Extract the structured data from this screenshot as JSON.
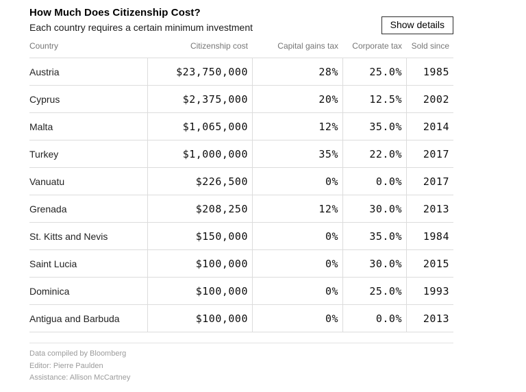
{
  "header": {
    "title": "How Much Does Citizenship Cost?",
    "subtitle": "Each country requires a certain minimum investment",
    "show_details_label": "Show details"
  },
  "chart_data": {
    "type": "table",
    "title": "How Much Does Citizenship Cost?",
    "subtitle": "Each country requires a certain minimum investment",
    "columns": [
      "Country",
      "Citizenship cost",
      "Capital gains tax",
      "Corporate tax",
      "Sold since"
    ],
    "rows": [
      {
        "country": "Austria",
        "cost": "$23,750,000",
        "capital_gains": "28%",
        "corporate": "25.0%",
        "sold_since": "1985"
      },
      {
        "country": "Cyprus",
        "cost": "$2,375,000",
        "capital_gains": "20%",
        "corporate": "12.5%",
        "sold_since": "2002"
      },
      {
        "country": "Malta",
        "cost": "$1,065,000",
        "capital_gains": "12%",
        "corporate": "35.0%",
        "sold_since": "2014"
      },
      {
        "country": "Turkey",
        "cost": "$1,000,000",
        "capital_gains": "35%",
        "corporate": "22.0%",
        "sold_since": "2017"
      },
      {
        "country": "Vanuatu",
        "cost": "$226,500",
        "capital_gains": "0%",
        "corporate": "0.0%",
        "sold_since": "2017"
      },
      {
        "country": "Grenada",
        "cost": "$208,250",
        "capital_gains": "12%",
        "corporate": "30.0%",
        "sold_since": "2013"
      },
      {
        "country": "St. Kitts and Nevis",
        "cost": "$150,000",
        "capital_gains": "0%",
        "corporate": "35.0%",
        "sold_since": "1984"
      },
      {
        "country": "Saint Lucia",
        "cost": "$100,000",
        "capital_gains": "0%",
        "corporate": "30.0%",
        "sold_since": "2015"
      },
      {
        "country": "Dominica",
        "cost": "$100,000",
        "capital_gains": "0%",
        "corporate": "25.0%",
        "sold_since": "1993"
      },
      {
        "country": "Antigua and Barbuda",
        "cost": "$100,000",
        "capital_gains": "0%",
        "corporate": "0.0%",
        "sold_since": "2013"
      }
    ],
    "cost_values_usd": [
      23750000,
      2375000,
      1065000,
      1000000,
      226500,
      208250,
      150000,
      100000,
      100000,
      100000
    ],
    "capital_gains_tax_pct": [
      28,
      20,
      12,
      35,
      0,
      12,
      0,
      0,
      0,
      0
    ],
    "corporate_tax_pct": [
      25.0,
      12.5,
      35.0,
      22.0,
      0.0,
      30.0,
      35.0,
      30.0,
      25.0,
      0.0
    ],
    "sold_since_years": [
      1985,
      2002,
      2014,
      2017,
      2017,
      2013,
      1984,
      2015,
      1993,
      2013
    ]
  },
  "footer": {
    "line1": "Data compiled by Bloomberg",
    "line2": "Editor: Pierre Paulden",
    "line3": "Assistance: Allison McCartney"
  },
  "colors": {
    "background": "#ffffff",
    "title_text": "#000000",
    "header_gray": "#767676",
    "gridline": "#dcdcdc",
    "footer_gray": "#9b9b9b"
  }
}
